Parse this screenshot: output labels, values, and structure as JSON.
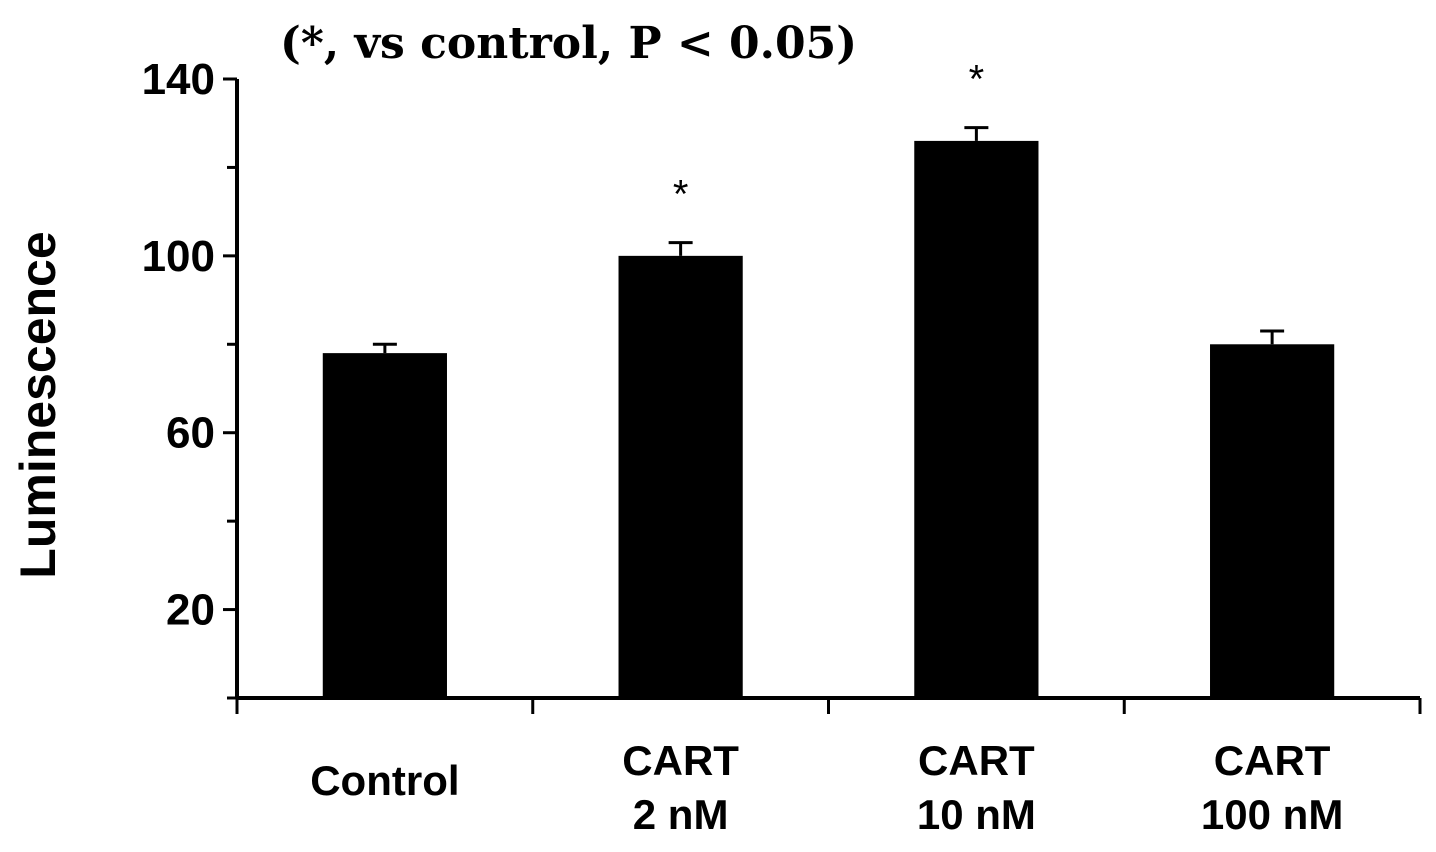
{
  "chart_data": {
    "type": "bar",
    "title": "(*, vs control, P < 0.05)",
    "xlabel": "",
    "ylabel": "Luminescence",
    "ylim": [
      0,
      140
    ],
    "yticks": [
      20,
      60,
      100,
      140
    ],
    "yminor_ticks": [
      0,
      40,
      80,
      120
    ],
    "grid": false,
    "categories": [
      [
        "Control"
      ],
      [
        "CART",
        "2 nM"
      ],
      [
        "CART",
        "10 nM"
      ],
      [
        "CART",
        "100 nM"
      ]
    ],
    "values": [
      78,
      100,
      126,
      80
    ],
    "errors": [
      2,
      3,
      3,
      3
    ],
    "significance": [
      "",
      "*",
      "*",
      ""
    ],
    "bar_color": "#000000",
    "axis_color": "#000000"
  }
}
